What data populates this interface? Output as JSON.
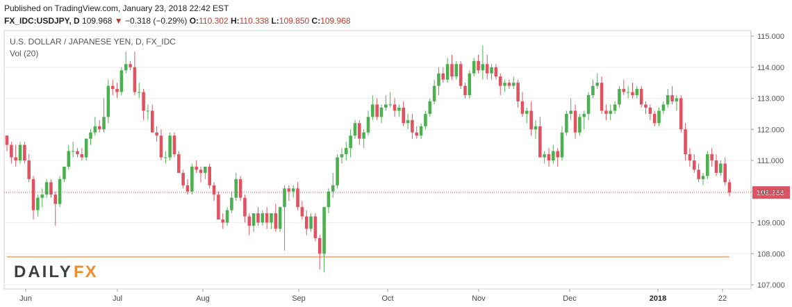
{
  "header": {
    "published": "Published on TradingView.com, January 23, 2018 22:42 EST",
    "symbol": "FX_IDC:USDJPY, D",
    "last": "109.968",
    "change": "−0.318 (−0.29%)",
    "o_label": "O:",
    "o_value": "110.302",
    "h_label": "H:",
    "h_value": "110.338",
    "l_label": "L:",
    "l_value": "109.850",
    "c_label": "C:",
    "c_value": "109.968"
  },
  "colors": {
    "up": "#4caf50",
    "down": "#e05260",
    "last_price_line": "#e05260",
    "support_line": "#f5b27a",
    "grid": "#eeeeee"
  },
  "chart_data": {
    "type": "candlestick",
    "title": "U.S. DOLLAR / JAPANESE YEN, D, FX_IDC",
    "indicator": "Vol (20)",
    "ylim": [
      107,
      115
    ],
    "y_ticks": [
      "107.000",
      "108.000",
      "109.000",
      "110.000",
      "111.000",
      "112.000",
      "113.000",
      "114.000",
      "115.000"
    ],
    "x_ticks": [
      "Jun",
      "Jul",
      "Aug",
      "Sep",
      "Oct",
      "Nov",
      "Dec",
      "2018",
      "22"
    ],
    "last_price_label": "109.968",
    "last_price": 109.968,
    "support_level": 107.9,
    "grid": true,
    "candles": [
      {
        "o": 111.8,
        "h": 111.8,
        "l": 111.3,
        "c": 111.5
      },
      {
        "o": 111.5,
        "h": 111.6,
        "l": 110.9,
        "c": 111.1
      },
      {
        "o": 111.1,
        "h": 111.5,
        "l": 110.8,
        "c": 111.0
      },
      {
        "o": 111.0,
        "h": 111.6,
        "l": 110.9,
        "c": 111.5
      },
      {
        "o": 111.5,
        "h": 111.6,
        "l": 110.9,
        "c": 111.0
      },
      {
        "o": 111.0,
        "h": 111.2,
        "l": 110.3,
        "c": 110.4
      },
      {
        "o": 110.4,
        "h": 110.5,
        "l": 109.1,
        "c": 109.4
      },
      {
        "o": 109.4,
        "h": 109.9,
        "l": 109.2,
        "c": 109.8
      },
      {
        "o": 109.8,
        "h": 110.1,
        "l": 109.5,
        "c": 109.9
      },
      {
        "o": 109.9,
        "h": 110.4,
        "l": 109.8,
        "c": 110.3
      },
      {
        "o": 110.3,
        "h": 110.4,
        "l": 109.8,
        "c": 109.9
      },
      {
        "o": 109.9,
        "h": 110.0,
        "l": 108.9,
        "c": 109.6
      },
      {
        "o": 109.6,
        "h": 110.5,
        "l": 109.5,
        "c": 110.4
      },
      {
        "o": 110.4,
        "h": 110.8,
        "l": 110.3,
        "c": 110.8
      },
      {
        "o": 110.8,
        "h": 111.5,
        "l": 110.7,
        "c": 111.3
      },
      {
        "o": 111.3,
        "h": 111.6,
        "l": 111.1,
        "c": 111.3
      },
      {
        "o": 111.3,
        "h": 111.4,
        "l": 111.1,
        "c": 111.2
      },
      {
        "o": 111.2,
        "h": 111.4,
        "l": 111.0,
        "c": 111.1
      },
      {
        "o": 111.1,
        "h": 111.7,
        "l": 111.0,
        "c": 111.7
      },
      {
        "o": 111.7,
        "h": 112.0,
        "l": 111.5,
        "c": 111.9
      },
      {
        "o": 111.9,
        "h": 112.4,
        "l": 111.8,
        "c": 112.1
      },
      {
        "o": 112.1,
        "h": 112.3,
        "l": 111.9,
        "c": 112.0
      },
      {
        "o": 112.0,
        "h": 113.0,
        "l": 111.9,
        "c": 112.4
      },
      {
        "o": 112.4,
        "h": 113.6,
        "l": 112.2,
        "c": 113.4
      },
      {
        "o": 113.4,
        "h": 113.6,
        "l": 113.1,
        "c": 113.3
      },
      {
        "o": 113.3,
        "h": 113.5,
        "l": 113.0,
        "c": 113.2
      },
      {
        "o": 113.2,
        "h": 114.0,
        "l": 113.1,
        "c": 113.9
      },
      {
        "o": 113.9,
        "h": 114.5,
        "l": 113.8,
        "c": 114.1
      },
      {
        "o": 114.1,
        "h": 114.2,
        "l": 113.9,
        "c": 114.0
      },
      {
        "o": 114.0,
        "h": 114.5,
        "l": 113.1,
        "c": 113.2
      },
      {
        "o": 113.2,
        "h": 113.5,
        "l": 113.0,
        "c": 113.2
      },
      {
        "o": 113.2,
        "h": 113.3,
        "l": 112.3,
        "c": 112.6
      },
      {
        "o": 112.6,
        "h": 112.8,
        "l": 112.3,
        "c": 112.6
      },
      {
        "o": 112.6,
        "h": 112.8,
        "l": 111.9,
        "c": 111.9
      },
      {
        "o": 111.9,
        "h": 112.1,
        "l": 111.6,
        "c": 111.8
      },
      {
        "o": 111.8,
        "h": 112.0,
        "l": 111.0,
        "c": 111.1
      },
      {
        "o": 111.1,
        "h": 111.3,
        "l": 110.9,
        "c": 111.1
      },
      {
        "o": 111.1,
        "h": 111.9,
        "l": 111.0,
        "c": 111.8
      },
      {
        "o": 111.8,
        "h": 111.9,
        "l": 111.1,
        "c": 111.2
      },
      {
        "o": 111.2,
        "h": 111.3,
        "l": 110.6,
        "c": 110.6
      },
      {
        "o": 110.6,
        "h": 110.7,
        "l": 110.1,
        "c": 110.2
      },
      {
        "o": 110.2,
        "h": 110.4,
        "l": 109.9,
        "c": 110.0
      },
      {
        "o": 110.0,
        "h": 110.9,
        "l": 109.9,
        "c": 110.8
      },
      {
        "o": 110.8,
        "h": 111.0,
        "l": 110.6,
        "c": 110.7
      },
      {
        "o": 110.7,
        "h": 110.8,
        "l": 110.3,
        "c": 110.6
      },
      {
        "o": 110.6,
        "h": 110.8,
        "l": 110.4,
        "c": 110.8
      },
      {
        "o": 110.8,
        "h": 110.9,
        "l": 110.1,
        "c": 110.2
      },
      {
        "o": 110.2,
        "h": 110.3,
        "l": 109.7,
        "c": 109.9
      },
      {
        "o": 109.9,
        "h": 110.0,
        "l": 109.1,
        "c": 109.1
      },
      {
        "o": 109.1,
        "h": 109.3,
        "l": 108.8,
        "c": 109.0
      },
      {
        "o": 109.0,
        "h": 109.5,
        "l": 108.9,
        "c": 109.4
      },
      {
        "o": 109.4,
        "h": 110.0,
        "l": 109.3,
        "c": 109.8
      },
      {
        "o": 109.8,
        "h": 110.6,
        "l": 109.7,
        "c": 110.4
      },
      {
        "o": 110.4,
        "h": 110.5,
        "l": 109.7,
        "c": 109.8
      },
      {
        "o": 109.8,
        "h": 109.9,
        "l": 109.0,
        "c": 109.2
      },
      {
        "o": 109.2,
        "h": 109.3,
        "l": 108.6,
        "c": 108.9
      },
      {
        "o": 108.9,
        "h": 109.3,
        "l": 108.7,
        "c": 109.3
      },
      {
        "o": 109.3,
        "h": 109.5,
        "l": 108.9,
        "c": 109.0
      },
      {
        "o": 109.0,
        "h": 109.4,
        "l": 108.9,
        "c": 109.3
      },
      {
        "o": 109.3,
        "h": 109.5,
        "l": 108.8,
        "c": 109.0
      },
      {
        "o": 109.0,
        "h": 109.3,
        "l": 108.8,
        "c": 109.3
      },
      {
        "o": 109.3,
        "h": 109.6,
        "l": 108.7,
        "c": 108.8
      },
      {
        "o": 108.8,
        "h": 109.5,
        "l": 108.7,
        "c": 109.5
      },
      {
        "o": 109.5,
        "h": 110.2,
        "l": 108.1,
        "c": 110.1
      },
      {
        "o": 110.1,
        "h": 110.2,
        "l": 109.7,
        "c": 110.0
      },
      {
        "o": 110.0,
        "h": 110.2,
        "l": 109.8,
        "c": 110.1
      },
      {
        "o": 110.1,
        "h": 110.3,
        "l": 109.4,
        "c": 109.5
      },
      {
        "o": 109.5,
        "h": 109.7,
        "l": 109.1,
        "c": 109.2
      },
      {
        "o": 109.2,
        "h": 109.4,
        "l": 108.6,
        "c": 108.8
      },
      {
        "o": 108.8,
        "h": 109.3,
        "l": 108.7,
        "c": 109.2
      },
      {
        "o": 109.2,
        "h": 109.3,
        "l": 108.4,
        "c": 108.5
      },
      {
        "o": 108.5,
        "h": 108.6,
        "l": 107.5,
        "c": 108.0
      },
      {
        "o": 108.0,
        "h": 109.5,
        "l": 107.4,
        "c": 109.5
      },
      {
        "o": 109.5,
        "h": 110.1,
        "l": 109.3,
        "c": 110.0
      },
      {
        "o": 110.0,
        "h": 110.6,
        "l": 109.8,
        "c": 110.2
      },
      {
        "o": 110.2,
        "h": 111.2,
        "l": 110.1,
        "c": 111.1
      },
      {
        "o": 111.1,
        "h": 111.4,
        "l": 110.9,
        "c": 111.2
      },
      {
        "o": 111.2,
        "h": 111.6,
        "l": 111.0,
        "c": 111.4
      },
      {
        "o": 111.4,
        "h": 112.0,
        "l": 111.1,
        "c": 111.8
      },
      {
        "o": 111.8,
        "h": 112.3,
        "l": 111.7,
        "c": 112.2
      },
      {
        "o": 112.2,
        "h": 112.3,
        "l": 111.5,
        "c": 111.7
      },
      {
        "o": 111.7,
        "h": 112.0,
        "l": 111.4,
        "c": 111.9
      },
      {
        "o": 111.9,
        "h": 112.6,
        "l": 111.8,
        "c": 112.4
      },
      {
        "o": 112.4,
        "h": 113.1,
        "l": 112.3,
        "c": 112.8
      },
      {
        "o": 112.8,
        "h": 113.0,
        "l": 112.3,
        "c": 112.4
      },
      {
        "o": 112.4,
        "h": 112.8,
        "l": 112.2,
        "c": 112.7
      },
      {
        "o": 112.7,
        "h": 113.1,
        "l": 112.6,
        "c": 112.8
      },
      {
        "o": 112.8,
        "h": 113.2,
        "l": 112.7,
        "c": 112.8
      },
      {
        "o": 112.8,
        "h": 113.0,
        "l": 112.4,
        "c": 112.6
      },
      {
        "o": 112.6,
        "h": 112.8,
        "l": 112.4,
        "c": 112.7
      },
      {
        "o": 112.7,
        "h": 112.9,
        "l": 112.1,
        "c": 112.2
      },
      {
        "o": 112.2,
        "h": 112.5,
        "l": 112.0,
        "c": 112.3
      },
      {
        "o": 112.3,
        "h": 112.5,
        "l": 111.7,
        "c": 111.9
      },
      {
        "o": 111.9,
        "h": 112.1,
        "l": 111.7,
        "c": 111.8
      },
      {
        "o": 111.8,
        "h": 112.2,
        "l": 111.7,
        "c": 112.1
      },
      {
        "o": 112.1,
        "h": 112.6,
        "l": 112.0,
        "c": 112.5
      },
      {
        "o": 112.5,
        "h": 113.0,
        "l": 112.4,
        "c": 112.9
      },
      {
        "o": 112.9,
        "h": 113.6,
        "l": 112.8,
        "c": 113.4
      },
      {
        "o": 113.4,
        "h": 114.0,
        "l": 113.1,
        "c": 113.8
      },
      {
        "o": 113.8,
        "h": 114.0,
        "l": 113.5,
        "c": 113.6
      },
      {
        "o": 113.6,
        "h": 114.3,
        "l": 113.5,
        "c": 114.1
      },
      {
        "o": 114.1,
        "h": 114.4,
        "l": 113.6,
        "c": 113.7
      },
      {
        "o": 113.7,
        "h": 114.2,
        "l": 113.6,
        "c": 114.1
      },
      {
        "o": 114.1,
        "h": 114.2,
        "l": 113.3,
        "c": 113.4
      },
      {
        "o": 113.4,
        "h": 113.5,
        "l": 113.0,
        "c": 113.1
      },
      {
        "o": 113.1,
        "h": 113.9,
        "l": 113.0,
        "c": 113.8
      },
      {
        "o": 113.8,
        "h": 114.3,
        "l": 113.7,
        "c": 114.2
      },
      {
        "o": 114.2,
        "h": 114.4,
        "l": 113.8,
        "c": 113.9
      },
      {
        "o": 113.9,
        "h": 114.7,
        "l": 113.6,
        "c": 114.1
      },
      {
        "o": 114.1,
        "h": 114.4,
        "l": 113.6,
        "c": 113.8
      },
      {
        "o": 113.8,
        "h": 114.1,
        "l": 113.6,
        "c": 114.0
      },
      {
        "o": 114.0,
        "h": 114.1,
        "l": 113.6,
        "c": 113.7
      },
      {
        "o": 113.7,
        "h": 113.8,
        "l": 113.1,
        "c": 113.4
      },
      {
        "o": 113.4,
        "h": 113.6,
        "l": 113.2,
        "c": 113.5
      },
      {
        "o": 113.5,
        "h": 113.6,
        "l": 113.3,
        "c": 113.4
      },
      {
        "o": 113.4,
        "h": 113.7,
        "l": 113.3,
        "c": 113.5
      },
      {
        "o": 113.5,
        "h": 113.6,
        "l": 112.7,
        "c": 112.9
      },
      {
        "o": 112.9,
        "h": 113.2,
        "l": 112.4,
        "c": 112.5
      },
      {
        "o": 112.5,
        "h": 112.7,
        "l": 112.2,
        "c": 112.6
      },
      {
        "o": 112.6,
        "h": 112.9,
        "l": 111.8,
        "c": 112.0
      },
      {
        "o": 112.0,
        "h": 112.3,
        "l": 111.7,
        "c": 112.1
      },
      {
        "o": 112.1,
        "h": 112.4,
        "l": 111.1,
        "c": 111.1
      },
      {
        "o": 111.1,
        "h": 111.3,
        "l": 110.9,
        "c": 111.2
      },
      {
        "o": 111.2,
        "h": 111.4,
        "l": 110.8,
        "c": 111.0
      },
      {
        "o": 111.0,
        "h": 111.5,
        "l": 110.9,
        "c": 111.3
      },
      {
        "o": 111.3,
        "h": 111.4,
        "l": 110.8,
        "c": 111.1
      },
      {
        "o": 111.1,
        "h": 112.1,
        "l": 111.0,
        "c": 111.9
      },
      {
        "o": 111.9,
        "h": 112.6,
        "l": 111.8,
        "c": 112.5
      },
      {
        "o": 112.5,
        "h": 113.0,
        "l": 112.3,
        "c": 112.6
      },
      {
        "o": 112.6,
        "h": 112.8,
        "l": 111.7,
        "c": 111.9
      },
      {
        "o": 111.9,
        "h": 112.5,
        "l": 111.8,
        "c": 112.4
      },
      {
        "o": 112.4,
        "h": 112.6,
        "l": 112.0,
        "c": 112.5
      },
      {
        "o": 112.5,
        "h": 113.2,
        "l": 112.3,
        "c": 113.1
      },
      {
        "o": 113.1,
        "h": 113.6,
        "l": 113.0,
        "c": 113.4
      },
      {
        "o": 113.4,
        "h": 113.8,
        "l": 113.3,
        "c": 113.5
      },
      {
        "o": 113.5,
        "h": 113.7,
        "l": 112.5,
        "c": 112.6
      },
      {
        "o": 112.6,
        "h": 112.8,
        "l": 112.3,
        "c": 112.5
      },
      {
        "o": 112.5,
        "h": 112.8,
        "l": 112.3,
        "c": 112.6
      },
      {
        "o": 112.6,
        "h": 112.9,
        "l": 112.5,
        "c": 112.8
      },
      {
        "o": 112.8,
        "h": 113.4,
        "l": 112.7,
        "c": 113.3
      },
      {
        "o": 113.3,
        "h": 113.6,
        "l": 113.1,
        "c": 113.2
      },
      {
        "o": 113.2,
        "h": 113.4,
        "l": 113.0,
        "c": 113.2
      },
      {
        "o": 113.2,
        "h": 113.5,
        "l": 113.0,
        "c": 113.1
      },
      {
        "o": 113.1,
        "h": 113.4,
        "l": 113.0,
        "c": 113.3
      },
      {
        "o": 113.3,
        "h": 113.4,
        "l": 112.7,
        "c": 112.8
      },
      {
        "o": 112.8,
        "h": 112.9,
        "l": 112.5,
        "c": 112.7
      },
      {
        "o": 112.7,
        "h": 112.8,
        "l": 112.3,
        "c": 112.5
      },
      {
        "o": 112.5,
        "h": 112.6,
        "l": 112.1,
        "c": 112.2
      },
      {
        "o": 112.2,
        "h": 112.7,
        "l": 112.1,
        "c": 112.6
      },
      {
        "o": 112.6,
        "h": 112.9,
        "l": 112.5,
        "c": 112.8
      },
      {
        "o": 112.8,
        "h": 113.3,
        "l": 112.7,
        "c": 113.1
      },
      {
        "o": 113.1,
        "h": 113.4,
        "l": 112.8,
        "c": 112.9
      },
      {
        "o": 112.9,
        "h": 113.1,
        "l": 112.6,
        "c": 113.0
      },
      {
        "o": 113.0,
        "h": 113.1,
        "l": 111.9,
        "c": 112.0
      },
      {
        "o": 112.0,
        "h": 112.2,
        "l": 111.0,
        "c": 111.2
      },
      {
        "o": 111.2,
        "h": 111.4,
        "l": 110.8,
        "c": 111.0
      },
      {
        "o": 111.0,
        "h": 111.2,
        "l": 110.6,
        "c": 110.7
      },
      {
        "o": 110.7,
        "h": 110.9,
        "l": 110.3,
        "c": 110.4
      },
      {
        "o": 110.4,
        "h": 110.6,
        "l": 110.2,
        "c": 110.5
      },
      {
        "o": 110.5,
        "h": 111.3,
        "l": 110.4,
        "c": 111.2
      },
      {
        "o": 111.2,
        "h": 111.4,
        "l": 110.8,
        "c": 111.0
      },
      {
        "o": 111.0,
        "h": 111.2,
        "l": 110.5,
        "c": 110.6
      },
      {
        "o": 110.6,
        "h": 111.0,
        "l": 110.5,
        "c": 110.9
      },
      {
        "o": 110.9,
        "h": 111.1,
        "l": 110.2,
        "c": 110.3
      },
      {
        "o": 110.3,
        "h": 110.4,
        "l": 109.85,
        "c": 109.968
      }
    ]
  },
  "branding": {
    "logo_part1": "DAILY",
    "logo_part2": "FX"
  }
}
